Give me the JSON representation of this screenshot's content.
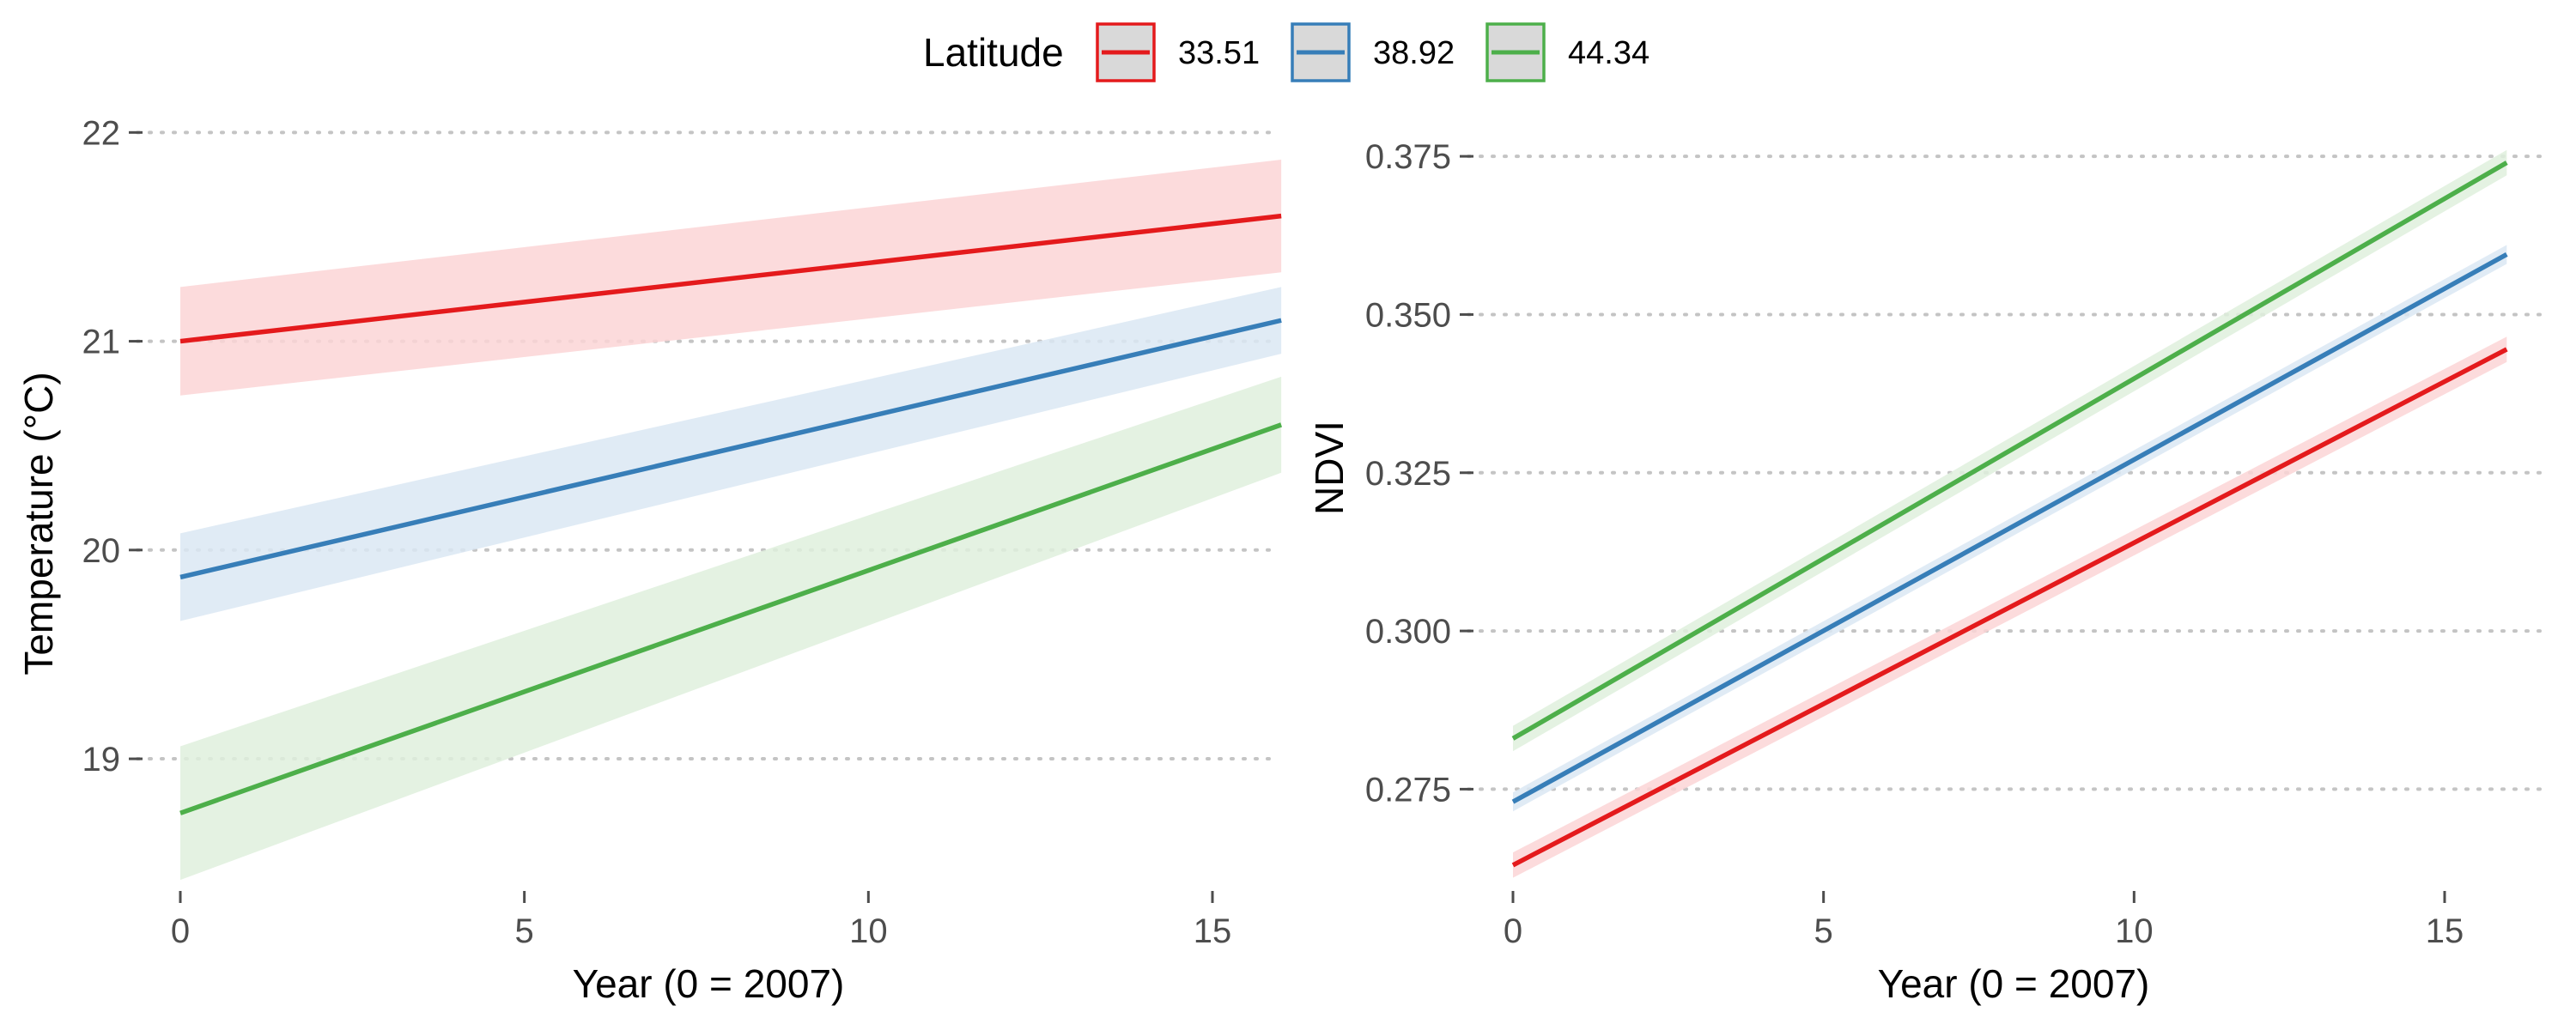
{
  "legend": {
    "title": "Latitude",
    "items": [
      {
        "label": "33.51",
        "color": "#e41a1c",
        "fill": "#fbd5d6"
      },
      {
        "label": "38.92",
        "color": "#377eb8",
        "fill": "#dbe7f3"
      },
      {
        "label": "44.34",
        "color": "#4daf4a",
        "fill": "#dff0dd"
      }
    ]
  },
  "chart_data": [
    {
      "type": "line",
      "xlabel": "Year (0 = 2007)",
      "ylabel": "Temperature (°C)",
      "xlim": [
        0,
        16
      ],
      "ylim": [
        18.4,
        22.1
      ],
      "xticks": [
        0,
        5,
        10,
        15
      ],
      "yticks": [
        19,
        20,
        21,
        22
      ],
      "grid": "horizontal dotted",
      "series": [
        {
          "name": "33.51",
          "x": [
            0,
            16
          ],
          "y": [
            21.0,
            21.6
          ],
          "lower": [
            20.74,
            21.33
          ],
          "upper": [
            21.26,
            21.87
          ]
        },
        {
          "name": "38.92",
          "x": [
            0,
            16
          ],
          "y": [
            19.87,
            21.1
          ],
          "lower": [
            19.66,
            20.94
          ],
          "upper": [
            20.08,
            21.26
          ]
        },
        {
          "name": "44.34",
          "x": [
            0,
            16
          ],
          "y": [
            18.74,
            20.6
          ],
          "lower": [
            18.42,
            20.37
          ],
          "upper": [
            19.06,
            20.83
          ]
        }
      ]
    },
    {
      "type": "line",
      "xlabel": "Year (0 = 2007)",
      "ylabel": "NDVI",
      "xlim": [
        0,
        16
      ],
      "ylim": [
        0.26,
        0.378
      ],
      "xticks": [
        0,
        5,
        10,
        15
      ],
      "yticks": [
        0.275,
        0.3,
        0.325,
        0.35,
        0.375
      ],
      "ytick_labels": [
        "0.275",
        "0.300",
        "0.325",
        "0.350",
        "0.375"
      ],
      "grid": "horizontal dotted",
      "series": [
        {
          "name": "33.51",
          "x": [
            0,
            16
          ],
          "y": [
            0.263,
            0.3445
          ],
          "lower": [
            0.261,
            0.3425
          ],
          "upper": [
            0.265,
            0.3465
          ]
        },
        {
          "name": "38.92",
          "x": [
            0,
            16
          ],
          "y": [
            0.273,
            0.3595
          ],
          "lower": [
            0.2715,
            0.358
          ],
          "upper": [
            0.2745,
            0.361
          ]
        },
        {
          "name": "44.34",
          "x": [
            0,
            16
          ],
          "y": [
            0.283,
            0.374
          ],
          "lower": [
            0.281,
            0.372
          ],
          "upper": [
            0.285,
            0.376
          ]
        }
      ]
    }
  ]
}
